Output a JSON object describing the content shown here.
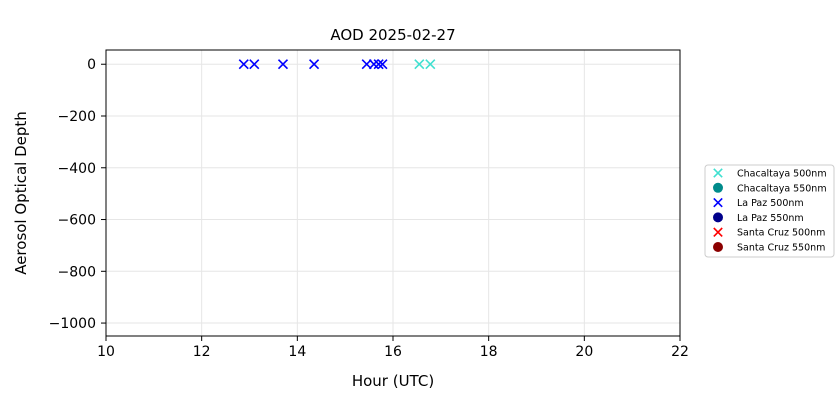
{
  "chart_data": {
    "type": "scatter",
    "title": "AOD 2025-02-27",
    "xlabel": "Hour (UTC)",
    "ylabel": "Aerosol Optical Depth",
    "xlim": [
      10,
      22
    ],
    "ylim": [
      -1050,
      55
    ],
    "xticks": [
      "10",
      "12",
      "14",
      "16",
      "18",
      "20",
      "22"
    ],
    "yticks": [
      "0",
      "−200",
      "−400",
      "−600",
      "−800",
      "−1000"
    ],
    "grid": true,
    "legend_position": "outside-right",
    "series": [
      {
        "name": "Chacaltaya 500nm",
        "marker": "x",
        "color": "#40e0d0",
        "points": [
          [
            16.55,
            0
          ],
          [
            16.78,
            0
          ]
        ]
      },
      {
        "name": "Chacaltaya 550nm",
        "marker": "o",
        "color": "#008b8b",
        "points": []
      },
      {
        "name": "La Paz 500nm",
        "marker": "x",
        "color": "#0000ff",
        "points": [
          [
            12.88,
            0
          ],
          [
            13.1,
            0
          ],
          [
            13.7,
            0
          ],
          [
            14.35,
            0
          ],
          [
            15.45,
            0
          ],
          [
            15.6,
            0
          ],
          [
            15.7,
            0
          ],
          [
            15.78,
            0
          ]
        ]
      },
      {
        "name": "La Paz 550nm",
        "marker": "o",
        "color": "#00008b",
        "points": []
      },
      {
        "name": "Santa Cruz 500nm",
        "marker": "x",
        "color": "#ff0000",
        "points": []
      },
      {
        "name": "Santa Cruz 550nm",
        "marker": "o",
        "color": "#8b0000",
        "points": []
      }
    ]
  }
}
